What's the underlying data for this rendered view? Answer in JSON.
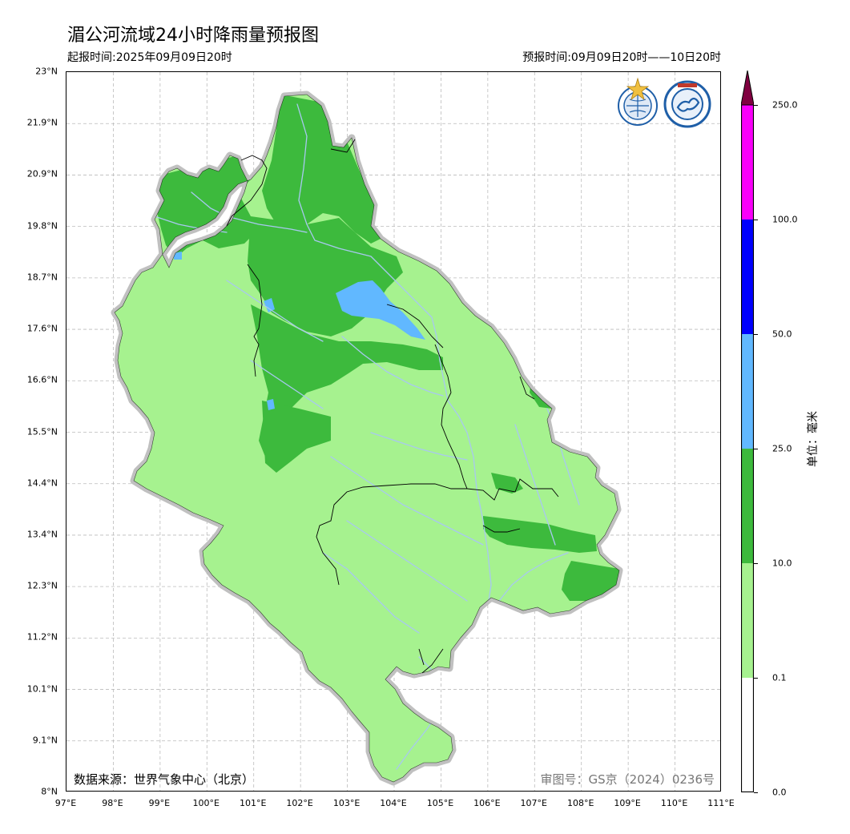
{
  "title": "湄公河流域24小时降雨量预报图",
  "issue_time": "起报时间:2025年09月09日20时",
  "valid_time": "预报时间:09月09日20时——10日20时",
  "data_source": "数据来源：世界气象中心（北京）",
  "review_number": "审图号：GS京（2024）0236号",
  "colorbar": {
    "unit": "单位：毫米",
    "levels": [
      "0.0",
      "0.1",
      "10.0",
      "25.0",
      "50.0",
      "100.0",
      "250.0"
    ],
    "colors": [
      "#ffffff",
      "#a6f28f",
      "#3dba3d",
      "#61b8ff",
      "#0000ff",
      "#fa00fa",
      "#800040"
    ]
  },
  "axes": {
    "lat_ticks": [
      "23°N",
      "21.9°N",
      "20.9°N",
      "19.8°N",
      "18.7°N",
      "17.6°N",
      "16.6°N",
      "15.5°N",
      "14.4°N",
      "13.4°N",
      "12.3°N",
      "11.2°N",
      "10.1°N",
      "9.1°N",
      "8°N"
    ],
    "lon_ticks": [
      "97°E",
      "98°E",
      "99°E",
      "100°E",
      "101°E",
      "102°E",
      "103°E",
      "104°E",
      "105°E",
      "106°E",
      "107°E",
      "108°E",
      "109°E",
      "110°E",
      "111°E"
    ]
  },
  "map": {
    "basin_fill_light": "#a6f28f",
    "rain_heavy": "#3dba3d",
    "rain_storm": "#61b8ff",
    "river": "#a8c8f0",
    "basin_outline": "#c0c0c0",
    "logos": [
      "wmo-logo-icon",
      "cma-logo-icon"
    ]
  }
}
